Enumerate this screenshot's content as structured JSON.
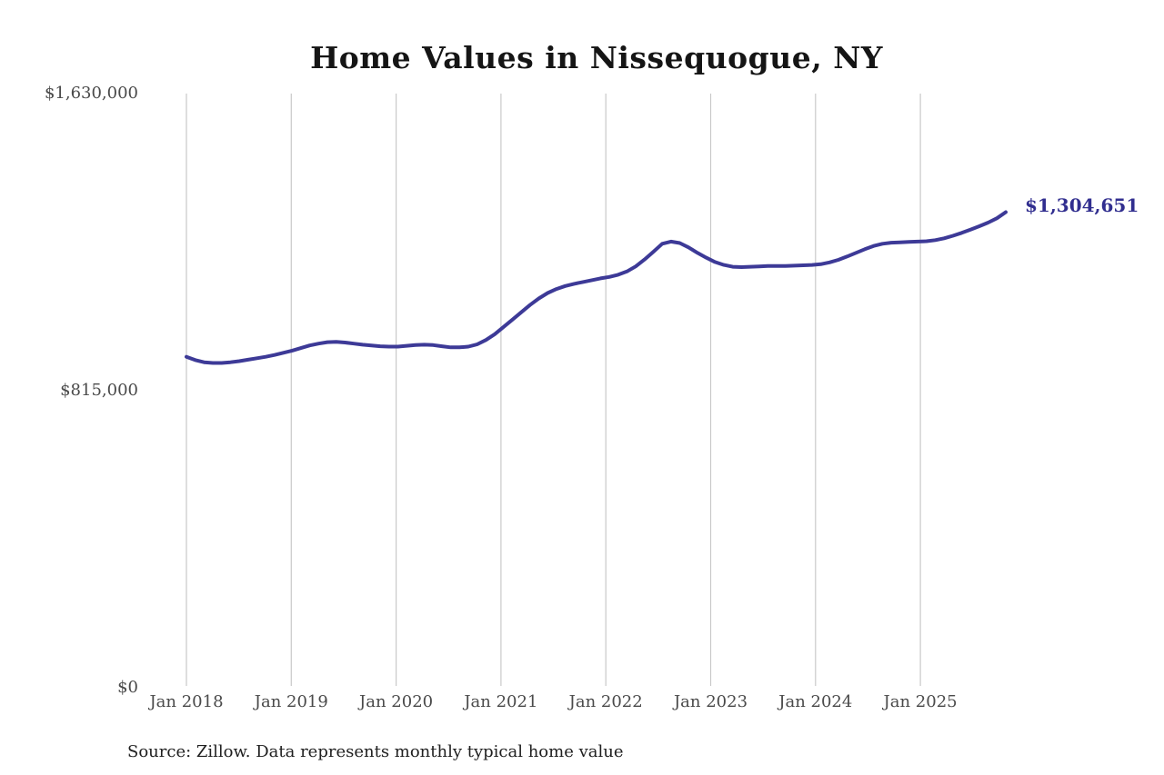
{
  "chart_data": {
    "type": "line",
    "title": "Home Values in Nissequogue, NY",
    "series_name": "Monthly typical home value",
    "end_annotation": "$1,304,651",
    "latest_value": 1304651,
    "source": "Source: Zillow. Data represents monthly typical home value",
    "legend": "none",
    "grid": "vertical-only",
    "ylim": [
      0,
      1630000
    ],
    "yticks": {
      "values": [
        1630000,
        815000,
        0
      ],
      "labels": [
        "$1,630,000",
        "$815,000",
        "$0"
      ]
    },
    "xticks": {
      "labels": [
        "Jan 2018",
        "Jan 2019",
        "Jan 2020",
        "Jan 2021",
        "Jan 2022",
        "Jan 2023",
        "Jan 2024",
        "Jan 2025"
      ]
    },
    "colors": {
      "line": "#3d3a97",
      "end_annotation_text": "#312e8f",
      "gridline": "#c9c9c9",
      "axis_text": "#4a4a4a",
      "title_text": "#151515",
      "source_text": "#202020",
      "background": "#ffffff"
    },
    "x": [
      "2018-01",
      "2018-02",
      "2018-03",
      "2018-04",
      "2018-05",
      "2018-06",
      "2018-07",
      "2018-08",
      "2018-09",
      "2018-10",
      "2018-11",
      "2018-12",
      "2019-01",
      "2019-02",
      "2019-03",
      "2019-04",
      "2019-05",
      "2019-06",
      "2019-07",
      "2019-08",
      "2019-09",
      "2019-10",
      "2019-11",
      "2019-12",
      "2020-01",
      "2020-02",
      "2020-03",
      "2020-04",
      "2020-05",
      "2020-06",
      "2020-07",
      "2020-08",
      "2020-09",
      "2020-10",
      "2020-11",
      "2020-12",
      "2021-01",
      "2021-02",
      "2021-03",
      "2021-04",
      "2021-05",
      "2021-06",
      "2021-07",
      "2021-08",
      "2021-09",
      "2021-10",
      "2021-11",
      "2021-12",
      "2022-01",
      "2022-02",
      "2022-03",
      "2022-04",
      "2022-05",
      "2022-06",
      "2022-07",
      "2022-08",
      "2022-09",
      "2022-10",
      "2022-11",
      "2022-12",
      "2023-01",
      "2023-02",
      "2023-03",
      "2023-04",
      "2023-05",
      "2023-06",
      "2023-07",
      "2023-08",
      "2023-09",
      "2023-10",
      "2023-11",
      "2023-12",
      "2024-01",
      "2024-02",
      "2024-03",
      "2024-04",
      "2024-05",
      "2024-06",
      "2024-07",
      "2024-08",
      "2024-09",
      "2024-10",
      "2024-11",
      "2024-12",
      "2025-01",
      "2025-02",
      "2025-03",
      "2025-04",
      "2025-05",
      "2025-06",
      "2025-07",
      "2025-08",
      "2025-09",
      "2025-10"
    ],
    "values": [
      908000,
      899000,
      893000,
      891000,
      891000,
      893000,
      896000,
      900000,
      904000,
      908000,
      913000,
      919000,
      925000,
      932000,
      939000,
      944000,
      948000,
      949000,
      947000,
      944000,
      941000,
      939000,
      937000,
      936000,
      936000,
      938000,
      940000,
      941000,
      940000,
      937000,
      934000,
      934000,
      936000,
      942000,
      954000,
      970000,
      990000,
      1010000,
      1030000,
      1050000,
      1068000,
      1083000,
      1094000,
      1102000,
      1108000,
      1113000,
      1118000,
      1123000,
      1127000,
      1133000,
      1142000,
      1156000,
      1175000,
      1196000,
      1218000,
      1224000,
      1220000,
      1208000,
      1193000,
      1180000,
      1168000,
      1160000,
      1155000,
      1154000,
      1155000,
      1156000,
      1157000,
      1157000,
      1157000,
      1158000,
      1159000,
      1160000,
      1162000,
      1167000,
      1174000,
      1183000,
      1193000,
      1203000,
      1212000,
      1218000,
      1221000,
      1222000,
      1223000,
      1224000,
      1225000,
      1228000,
      1233000,
      1240000,
      1248000,
      1257000,
      1266000,
      1276000,
      1288000,
      1304651
    ]
  }
}
